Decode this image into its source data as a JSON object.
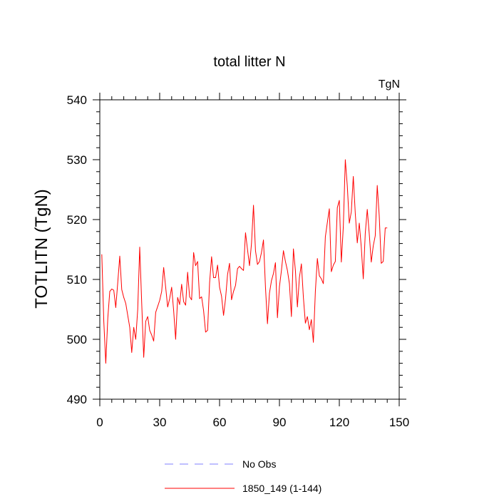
{
  "chart_data": {
    "type": "line",
    "title": "total litter N",
    "units_label": "TgN",
    "ylabel": "TOTLITN  (TgN)",
    "xlabel": "",
    "xlim": [
      0,
      150
    ],
    "ylim": [
      490,
      540
    ],
    "xticks": [
      0,
      30,
      60,
      90,
      120,
      150
    ],
    "yticks": [
      490,
      500,
      510,
      520,
      530,
      540
    ],
    "xtick_labels": [
      "0",
      "30",
      "60",
      "90",
      "120",
      "150"
    ],
    "ytick_labels": [
      "490",
      "500",
      "510",
      "520",
      "530",
      "540"
    ],
    "grid": false,
    "legend_position": "bottom",
    "legend": [
      {
        "label": "No Obs",
        "color": "#7f7fff",
        "style": "dashed"
      },
      {
        "label": "1850_149 (1-144)",
        "color": "#ff0000",
        "style": "solid"
      }
    ],
    "series": [
      {
        "name": "1850_149 (1-144)",
        "color": "#ff0000",
        "x": [
          1,
          2,
          3,
          4,
          5,
          6,
          7,
          8,
          9,
          10,
          11,
          12,
          13,
          14,
          15,
          16,
          17,
          18,
          19,
          20,
          21,
          22,
          23,
          24,
          25,
          26,
          27,
          28,
          29,
          30,
          31,
          32,
          33,
          34,
          35,
          36,
          37,
          38,
          39,
          40,
          41,
          42,
          43,
          44,
          45,
          46,
          47,
          48,
          49,
          50,
          51,
          52,
          53,
          54,
          55,
          56,
          57,
          58,
          59,
          60,
          61,
          62,
          63,
          64,
          65,
          66,
          67,
          68,
          69,
          70,
          71,
          72,
          73,
          74,
          75,
          76,
          77,
          78,
          79,
          80,
          81,
          82,
          83,
          84,
          85,
          86,
          87,
          88,
          89,
          90,
          91,
          92,
          93,
          94,
          95,
          96,
          97,
          98,
          99,
          100,
          101,
          102,
          103,
          104,
          105,
          106,
          107,
          108,
          109,
          110,
          111,
          112,
          113,
          114,
          115,
          116,
          117,
          118,
          119,
          120,
          121,
          122,
          123,
          124,
          125,
          126,
          127,
          128,
          129,
          130,
          131,
          132,
          133,
          134,
          135,
          136,
          137,
          138,
          139,
          140,
          141,
          142,
          143,
          144
        ],
        "values": [
          514.2,
          503.0,
          496.0,
          503.5,
          508.0,
          508.4,
          508.2,
          505.3,
          509.5,
          513.9,
          508.3,
          507.0,
          506.0,
          504.0,
          502.0,
          497.8,
          502.0,
          500.0,
          505.0,
          515.4,
          506.0,
          497.0,
          503.0,
          503.8,
          501.5,
          500.7,
          499.7,
          504.5,
          505.5,
          506.5,
          508.0,
          512.0,
          508.7,
          505.4,
          506.8,
          508.7,
          504.8,
          500.0,
          507.0,
          505.8,
          509.2,
          506.3,
          505.7,
          511.2,
          507.1,
          506.6,
          514.5,
          512.3,
          513.0,
          506.8,
          507.1,
          504.8,
          501.2,
          501.5,
          509.4,
          513.8,
          510.3,
          510.3,
          512.4,
          508.7,
          507.2,
          504.0,
          506.8,
          510.8,
          512.7,
          506.6,
          508.0,
          509.0,
          511.8,
          512.2,
          511.8,
          511.5,
          517.8,
          515.0,
          512.3,
          516.0,
          522.4,
          514.8,
          512.5,
          513.0,
          514.5,
          516.6,
          508.7,
          502.6,
          507.7,
          509.8,
          511.0,
          512.8,
          503.6,
          508.8,
          511.5,
          514.8,
          513.0,
          511.5,
          509.3,
          503.8,
          515.1,
          511.5,
          505.4,
          510.3,
          512.6,
          507.0,
          502.7,
          503.8,
          501.6,
          503.3,
          499.5,
          508.0,
          513.5,
          510.6,
          510.1,
          509.3,
          517.1,
          519.5,
          521.8,
          511.3,
          512.4,
          513.0,
          522.0,
          523.2,
          512.9,
          518.8,
          530.0,
          525.6,
          519.4,
          521.3,
          527.2,
          521.0,
          516.1,
          519.4,
          515.4,
          510.1,
          517.7,
          521.7,
          517.6,
          512.9,
          515.6,
          517.3,
          525.7,
          520.6,
          512.7,
          513.0,
          518.6,
          518.6
        ]
      }
    ]
  }
}
